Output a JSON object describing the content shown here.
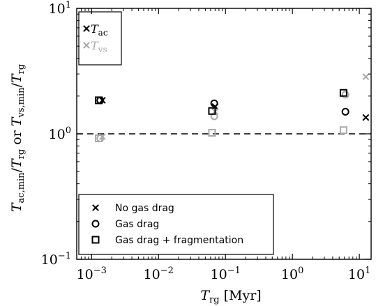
{
  "chart_data": {
    "type": "scatter",
    "xlabel": {
      "main": "T",
      "sub": "rg",
      "unit": " [Myr]"
    },
    "ylabel": {
      "part1_main": "T",
      "part1_sub": "ac,min",
      "part1_tail": "/",
      "part1_den_main": "T",
      "part1_den_sub": "rg",
      "connector": " or ",
      "part2_main": "T",
      "part2_sub": "vs,min",
      "part2_tail": "/",
      "part2_den_main": "T",
      "part2_den_sub": "rg"
    },
    "xscale": "log",
    "yscale": "log",
    "xlim": [
      0.0006,
      15
    ],
    "ylim": [
      0.1,
      10
    ],
    "x_ticks": [
      {
        "base": "10",
        "exp": "−3"
      },
      {
        "base": "10",
        "exp": "−2"
      },
      {
        "base": "10",
        "exp": "−1"
      },
      {
        "base": "10",
        "exp": "0"
      },
      {
        "base": "10",
        "exp": "1"
      }
    ],
    "y_ticks": [
      {
        "base": "10",
        "exp": "−1"
      },
      {
        "base": "10",
        "exp": "0"
      },
      {
        "base": "10",
        "exp": "1"
      }
    ],
    "reference_line": {
      "y": 1,
      "style": "dashed"
    },
    "grid": false,
    "colors": {
      "ac": "#000000",
      "vs": "#aaaaaa"
    },
    "series": [
      {
        "quantity": "ac",
        "method": "no_gas_drag",
        "marker": "x",
        "points": [
          [
            0.00145,
            1.85
          ],
          [
            0.07,
            1.65
          ],
          [
            12.5,
            1.35
          ]
        ]
      },
      {
        "quantity": "vs",
        "method": "no_gas_drag",
        "marker": "x",
        "points": [
          [
            0.00145,
            0.95
          ],
          [
            0.07,
            1.5
          ],
          [
            12.5,
            2.85
          ]
        ]
      },
      {
        "quantity": "ac",
        "method": "gas_drag",
        "marker": "circle",
        "points": [
          [
            0.00135,
            1.85
          ],
          [
            0.068,
            1.75
          ],
          [
            6.2,
            1.5
          ]
        ]
      },
      {
        "quantity": "vs",
        "method": "gas_drag",
        "marker": "circle",
        "points": [
          [
            0.00135,
            0.92
          ],
          [
            0.068,
            1.38
          ],
          [
            6.2,
            2.05
          ]
        ]
      },
      {
        "quantity": "ac",
        "method": "gas_drag_fragmentation",
        "marker": "square",
        "points": [
          [
            0.00128,
            1.85
          ],
          [
            0.063,
            1.52
          ],
          [
            5.8,
            2.12
          ]
        ]
      },
      {
        "quantity": "vs",
        "method": "gas_drag_fragmentation",
        "marker": "square",
        "points": [
          [
            0.00128,
            0.92
          ],
          [
            0.063,
            1.02
          ],
          [
            5.8,
            1.07
          ]
        ]
      }
    ],
    "legend_quantity": {
      "position": "top-left",
      "entries": [
        {
          "quantity": "ac",
          "main": "T",
          "sub": "ac"
        },
        {
          "quantity": "vs",
          "main": "T",
          "sub": "vs"
        }
      ]
    },
    "legend_method": {
      "position": "bottom-left",
      "entries": [
        {
          "method": "no_gas_drag",
          "marker": "x",
          "label": "No gas drag"
        },
        {
          "method": "gas_drag",
          "marker": "circle",
          "label": "Gas drag"
        },
        {
          "method": "gas_drag_fragmentation",
          "marker": "square",
          "label": "Gas drag + fragmentation"
        }
      ]
    }
  }
}
